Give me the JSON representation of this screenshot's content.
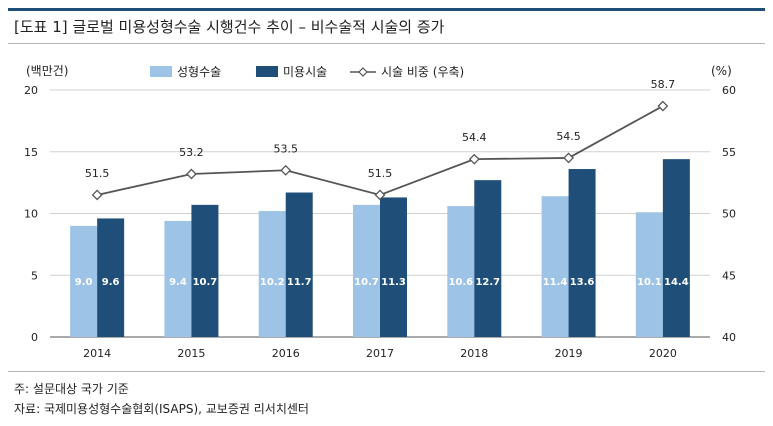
{
  "title": "[도표 1] 글로벌 미용성형수술 시행건수 추이 – 비수술적 시술의 증가",
  "chart_data": {
    "type": "bar",
    "categories": [
      "2014",
      "2015",
      "2016",
      "2017",
      "2018",
      "2019",
      "2020"
    ],
    "series": [
      {
        "name": "성형수술",
        "values": [
          9.0,
          9.4,
          10.2,
          10.7,
          10.6,
          11.4,
          10.1
        ],
        "color": "#9dc3e6",
        "labels": [
          "9.0",
          "9.4",
          "10.2",
          "10.7",
          "10.6",
          "11.4",
          "10.1"
        ]
      },
      {
        "name": "미용시술",
        "values": [
          9.6,
          10.7,
          11.7,
          11.3,
          12.7,
          13.6,
          14.4
        ],
        "color": "#1f4e79",
        "labels": [
          "9.6",
          "10.7",
          "11.7",
          "11.3",
          "12.7",
          "13.6",
          "14.4"
        ]
      }
    ],
    "line_series": {
      "name": "시술 비중 (우축)",
      "values": [
        51.5,
        53.2,
        53.5,
        51.5,
        54.4,
        54.5,
        58.7
      ],
      "labels": [
        "51.5",
        "53.2",
        "53.5",
        "51.5",
        "54.4",
        "54.5",
        "58.7"
      ],
      "color": "#555555"
    },
    "ylabel": "(백만건)",
    "y2label": "(%)",
    "ylim": [
      0,
      20
    ],
    "yticks": [
      "0",
      "5",
      "10",
      "15",
      "20"
    ],
    "y2lim": [
      40,
      60
    ],
    "y2ticks": [
      "40",
      "45",
      "50",
      "55",
      "60"
    ],
    "grid": true,
    "legend": "top-center"
  },
  "notes": {
    "note1": "주: 설문대상 국가 기준",
    "source": "자료: 국제미용성형수술협회(ISAPS), 교보증권 리서치센터"
  }
}
